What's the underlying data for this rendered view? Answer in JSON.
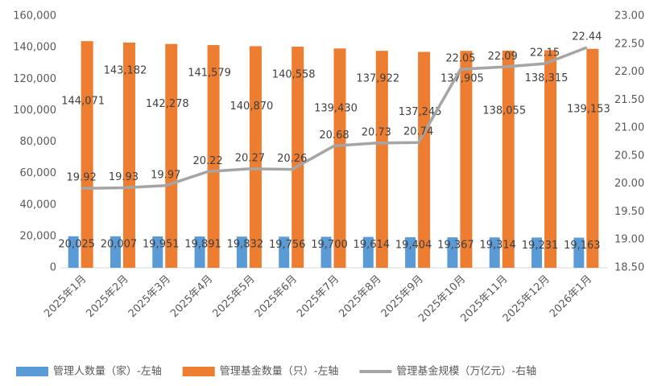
{
  "chart_data": {
    "type": "bar-line",
    "categories": [
      "2025年1月",
      "2025年2月",
      "2025年3月",
      "2025年4月",
      "2025年5月",
      "2025年6月",
      "2025年7月",
      "2025年8月",
      "2025年9月",
      "2025年10月",
      "2025年11月",
      "2025年12月",
      "2026年1月"
    ],
    "series": [
      {
        "name": "管理人数量（家）-左轴",
        "color": "#5b9bd5",
        "kind": "bar",
        "values": [
          20025,
          20007,
          19951,
          19891,
          19832,
          19756,
          19700,
          19614,
          19404,
          19367,
          19314,
          19231,
          19163
        ],
        "value_labels": [
          "20,025",
          "20,007",
          "19,951",
          "19,891",
          "19,832",
          "19,756",
          "19,700",
          "19,614",
          "19,404",
          "19,367",
          "19,314",
          "19,231",
          "19,163"
        ]
      },
      {
        "name": "管理基金数量（只）-左轴",
        "color": "#ed7d31",
        "kind": "bar",
        "values": [
          144071,
          143182,
          142278,
          141579,
          140870,
          140558,
          139430,
          137922,
          137245,
          137905,
          138055,
          138315,
          139153
        ],
        "value_labels": [
          "144,071",
          "143,182",
          "142,278",
          "141,579",
          "140,870",
          "140,558",
          "139,430",
          "137,922",
          "137,245",
          "137,905",
          "138,055",
          "138,315",
          "139,153"
        ]
      },
      {
        "name": "管理基金规模（万亿元）-右轴",
        "color": "#a5a5a5",
        "kind": "line",
        "axis": "y2",
        "values": [
          19.92,
          19.93,
          19.97,
          20.22,
          20.27,
          20.26,
          20.68,
          20.73,
          20.74,
          22.05,
          22.09,
          22.15,
          22.44
        ]
      }
    ],
    "ylim": [
      0,
      160000
    ],
    "yticks": [
      0,
      {
        "value": 20000,
        "label": "20,000"
      },
      {
        "value": 40000,
        "label": "40,000"
      },
      {
        "value": 60000,
        "label": "60,000"
      },
      {
        "value": 80000,
        "label": "80,000"
      },
      {
        "value": 100000,
        "label": "100,000"
      },
      {
        "value": 120000,
        "label": "120,000"
      },
      {
        "value": 140000,
        "label": "140,000"
      },
      {
        "value": 160000,
        "label": "160,000"
      }
    ],
    "y2lim": [
      18.5,
      23
    ],
    "y2ticks": [
      {
        "value": 18.5,
        "label": "18.50"
      },
      {
        "value": 19,
        "label": "19.00"
      },
      {
        "value": 19.5,
        "label": "19.50"
      },
      {
        "value": 20,
        "label": "20.00"
      },
      {
        "value": 20.5,
        "label": "20.50"
      },
      {
        "value": 21,
        "label": "21.00"
      },
      {
        "value": 21.5,
        "label": "21.50"
      },
      {
        "value": 22,
        "label": "22.00"
      },
      {
        "value": 22.5,
        "label": "22.50"
      },
      {
        "value": 23,
        "label": "23.00"
      }
    ],
    "legend": "bottom"
  }
}
